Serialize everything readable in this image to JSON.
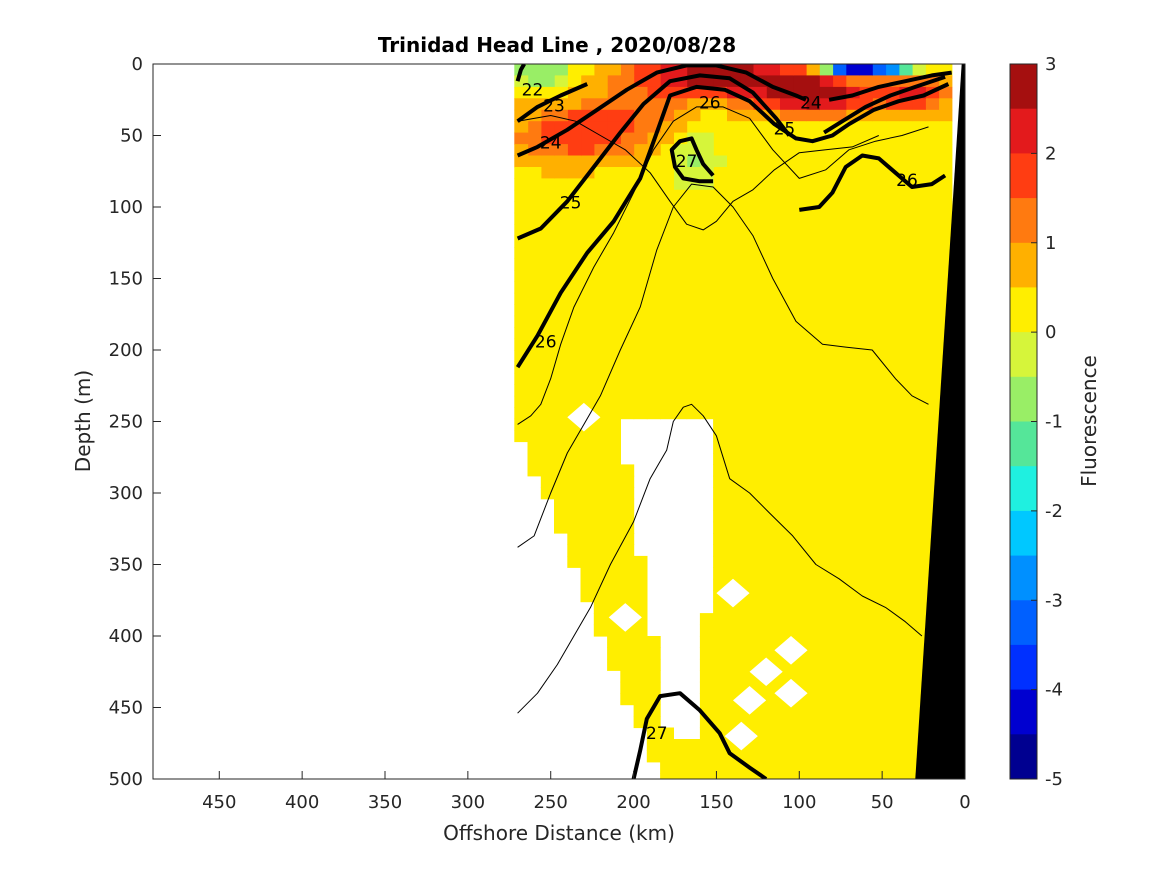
{
  "chart_data": {
    "type": "heatmap",
    "title": "Trinidad Head Line , 2020/08/28",
    "xlabel": "Offshore Distance (km)",
    "ylabel": "Depth (m)",
    "xlim": [
      490,
      0
    ],
    "ylim": [
      500,
      0
    ],
    "x_ticks": [
      "450",
      "400",
      "350",
      "300",
      "250",
      "200",
      "150",
      "100",
      "50",
      "0"
    ],
    "y_ticks": [
      "0",
      "50",
      "100",
      "150",
      "200",
      "250",
      "300",
      "350",
      "400",
      "450",
      "500"
    ],
    "colorbar": {
      "label": "Fluorescence",
      "range": [
        -5,
        3
      ],
      "ticks": [
        "3",
        "2",
        "1",
        "0",
        "-1",
        "-2",
        "-3",
        "-4",
        "-5"
      ],
      "levels": [
        {
          "from": 2.5,
          "to": 3.0,
          "color": "#a50f0f"
        },
        {
          "from": 2.0,
          "to": 2.5,
          "color": "#e31a1c"
        },
        {
          "from": 1.5,
          "to": 2.0,
          "color": "#ff3d12"
        },
        {
          "from": 1.0,
          "to": 1.5,
          "color": "#ff7a10"
        },
        {
          "from": 0.5,
          "to": 1.0,
          "color": "#ffb000"
        },
        {
          "from": 0.0,
          "to": 0.5,
          "color": "#ffee00"
        },
        {
          "from": -0.5,
          "to": 0.0,
          "color": "#d6f53a"
        },
        {
          "from": -1.0,
          "to": -0.5,
          "color": "#99ee66"
        },
        {
          "from": -1.5,
          "to": -1.0,
          "color": "#55e699"
        },
        {
          "from": -2.0,
          "to": -1.5,
          "color": "#1ff0e0"
        },
        {
          "from": -2.5,
          "to": -2.0,
          "color": "#00c8ff"
        },
        {
          "from": -3.0,
          "to": -2.5,
          "color": "#0090ff"
        },
        {
          "from": -3.5,
          "to": -3.0,
          "color": "#0060ff"
        },
        {
          "from": -4.0,
          "to": -3.5,
          "color": "#0030ff"
        },
        {
          "from": -4.5,
          "to": -4.0,
          "color": "#0000d0"
        },
        {
          "from": -5.0,
          "to": -4.5,
          "color": "#000090"
        }
      ]
    },
    "contour_labels": [
      {
        "text": "22",
        "x": 261,
        "y": 18
      },
      {
        "text": "23",
        "x": 248,
        "y": 29
      },
      {
        "text": "24",
        "x": 250,
        "y": 55
      },
      {
        "text": "25",
        "x": 238,
        "y": 97
      },
      {
        "text": "26",
        "x": 154,
        "y": 27
      },
      {
        "text": "24",
        "x": 93,
        "y": 27
      },
      {
        "text": "25",
        "x": 109,
        "y": 45
      },
      {
        "text": "27",
        "x": 168,
        "y": 68
      },
      {
        "text": "26",
        "x": 35,
        "y": 81
      },
      {
        "text": "26",
        "x": 253,
        "y": 194
      },
      {
        "text": "27",
        "x": 186,
        "y": 468
      }
    ],
    "contours": [
      {
        "level": 26,
        "bold": true,
        "points": [
          [
            270,
            212
          ],
          [
            258,
            190
          ],
          [
            244,
            160
          ],
          [
            228,
            132
          ],
          [
            212,
            110
          ],
          [
            196,
            80
          ],
          [
            186,
            48
          ],
          [
            178,
            22
          ],
          [
            162,
            16
          ],
          [
            145,
            18
          ],
          [
            130,
            26
          ],
          [
            115,
            42
          ],
          [
            102,
            52
          ],
          [
            92,
            54
          ],
          [
            80,
            50
          ],
          [
            70,
            42
          ],
          [
            55,
            32
          ],
          [
            40,
            26
          ],
          [
            25,
            22
          ],
          [
            10,
            14
          ]
        ]
      },
      {
        "level": 25,
        "bold": true,
        "points": [
          [
            270,
            122
          ],
          [
            256,
            115
          ],
          [
            240,
            96
          ],
          [
            224,
            72
          ],
          [
            208,
            48
          ],
          [
            194,
            28
          ],
          [
            178,
            12
          ],
          [
            160,
            8
          ],
          [
            142,
            10
          ],
          [
            128,
            20
          ],
          [
            114,
            38
          ],
          [
            106,
            50
          ]
        ]
      },
      {
        "level": 25,
        "bold": true,
        "points": [
          [
            85,
            48
          ],
          [
            74,
            40
          ],
          [
            60,
            30
          ],
          [
            45,
            22
          ],
          [
            30,
            16
          ],
          [
            12,
            9
          ]
        ]
      },
      {
        "level": 24,
        "bold": true,
        "points": [
          [
            270,
            64
          ],
          [
            258,
            58
          ],
          [
            240,
            46
          ],
          [
            222,
            32
          ],
          [
            204,
            18
          ],
          [
            186,
            6
          ],
          [
            168,
            1
          ],
          [
            150,
            1
          ],
          [
            132,
            6
          ],
          [
            116,
            16
          ],
          [
            102,
            22
          ],
          [
            96,
            25
          ]
        ]
      },
      {
        "level": 24,
        "bold": true,
        "points": [
          [
            82,
            25
          ],
          [
            68,
            22
          ],
          [
            52,
            16
          ],
          [
            36,
            12
          ],
          [
            20,
            8
          ],
          [
            8,
            6
          ]
        ]
      },
      {
        "level": 23,
        "bold": true,
        "points": [
          [
            270,
            40
          ],
          [
            258,
            30
          ],
          [
            244,
            22
          ],
          [
            228,
            14
          ]
        ]
      },
      {
        "level": 22,
        "bold": true,
        "points": [
          [
            270,
            12
          ],
          [
            268,
            4
          ],
          [
            266,
            0
          ]
        ]
      },
      {
        "level": 26,
        "bold": true,
        "points": [
          [
            100,
            102
          ],
          [
            88,
            100
          ],
          [
            80,
            90
          ],
          [
            72,
            72
          ],
          [
            62,
            64
          ],
          [
            52,
            66
          ],
          [
            42,
            76
          ],
          [
            32,
            86
          ],
          [
            20,
            84
          ],
          [
            12,
            78
          ]
        ]
      },
      {
        "level": 27,
        "bold": true,
        "points": [
          [
            152,
            82
          ],
          [
            160,
            82
          ],
          [
            170,
            80
          ],
          [
            175,
            72
          ],
          [
            177,
            60
          ],
          [
            172,
            54
          ],
          [
            165,
            52
          ],
          [
            162,
            60
          ],
          [
            158,
            70
          ],
          [
            152,
            78
          ]
        ]
      },
      {
        "level": 27,
        "bold": true,
        "points": [
          [
            200,
            500
          ],
          [
            196,
            480
          ],
          [
            192,
            458
          ],
          [
            184,
            442
          ],
          [
            172,
            440
          ],
          [
            160,
            452
          ],
          [
            148,
            468
          ],
          [
            142,
            482
          ],
          [
            130,
            492
          ],
          [
            120,
            500
          ]
        ]
      },
      {
        "level": 0,
        "bold": false,
        "points": [
          [
            270,
            252
          ],
          [
            262,
            246
          ],
          [
            256,
            238
          ],
          [
            250,
            220
          ],
          [
            244,
            196
          ],
          [
            236,
            170
          ],
          [
            224,
            142
          ],
          [
            212,
            118
          ],
          [
            200,
            90
          ],
          [
            188,
            60
          ],
          [
            176,
            40
          ],
          [
            162,
            30
          ],
          [
            146,
            30
          ],
          [
            130,
            38
          ],
          [
            116,
            60
          ],
          [
            100,
            80
          ],
          [
            84,
            74
          ],
          [
            70,
            60
          ],
          [
            54,
            54
          ],
          [
            38,
            50
          ],
          [
            22,
            44
          ]
        ]
      },
      {
        "level": 0,
        "bold": false,
        "points": [
          [
            270,
            338
          ],
          [
            260,
            330
          ],
          [
            250,
            300
          ],
          [
            240,
            272
          ],
          [
            230,
            252
          ],
          [
            220,
            232
          ],
          [
            208,
            200
          ],
          [
            196,
            170
          ],
          [
            186,
            130
          ],
          [
            176,
            100
          ],
          [
            165,
            84
          ],
          [
            152,
            86
          ],
          [
            140,
            100
          ],
          [
            128,
            120
          ],
          [
            116,
            150
          ],
          [
            102,
            180
          ],
          [
            86,
            196
          ],
          [
            72,
            198
          ],
          [
            56,
            200
          ],
          [
            42,
            220
          ],
          [
            32,
            232
          ],
          [
            22,
            238
          ]
        ]
      },
      {
        "level": 0,
        "bold": false,
        "points": [
          [
            270,
            454
          ],
          [
            258,
            440
          ],
          [
            246,
            420
          ],
          [
            236,
            400
          ],
          [
            226,
            380
          ],
          [
            214,
            350
          ],
          [
            200,
            320
          ],
          [
            190,
            290
          ],
          [
            185,
            280
          ],
          [
            180,
            270
          ],
          [
            176,
            250
          ],
          [
            170,
            240
          ],
          [
            165,
            238
          ],
          [
            158,
            246
          ],
          [
            150,
            260
          ],
          [
            142,
            290
          ],
          [
            130,
            300
          ],
          [
            118,
            314
          ],
          [
            104,
            330
          ],
          [
            90,
            350
          ],
          [
            76,
            360
          ],
          [
            62,
            372
          ],
          [
            48,
            380
          ],
          [
            36,
            390
          ],
          [
            26,
            400
          ]
        ]
      },
      {
        "level": 0,
        "bold": false,
        "points": [
          [
            270,
            40
          ],
          [
            250,
            36
          ],
          [
            235,
            40
          ],
          [
            220,
            50
          ],
          [
            205,
            60
          ],
          [
            190,
            76
          ],
          [
            178,
            96
          ],
          [
            168,
            112
          ],
          [
            158,
            116
          ],
          [
            150,
            110
          ],
          [
            140,
            96
          ],
          [
            128,
            88
          ],
          [
            115,
            74
          ],
          [
            100,
            62
          ],
          [
            84,
            60
          ],
          [
            68,
            58
          ],
          [
            52,
            50
          ]
        ]
      }
    ]
  }
}
